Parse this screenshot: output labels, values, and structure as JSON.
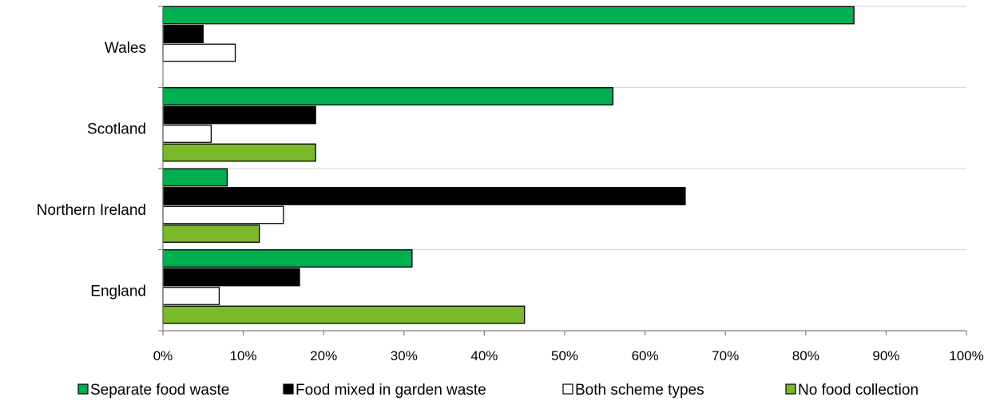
{
  "chart_data": {
    "type": "bar",
    "orientation": "horizontal",
    "title": "",
    "xlabel": "",
    "ylabel": "",
    "categories": [
      "Wales",
      "Scotland",
      "Northern Ireland",
      "England"
    ],
    "series": [
      {
        "name": "Separate food waste",
        "color": "#00b050",
        "values": [
          86,
          56,
          8,
          31
        ]
      },
      {
        "name": "Food mixed in garden waste",
        "color": "#000000",
        "values": [
          5,
          19,
          65,
          17
        ]
      },
      {
        "name": "Both scheme types",
        "color": "#ffffff",
        "values": [
          9,
          6,
          15,
          7
        ]
      },
      {
        "name": "No food collection",
        "color": "#7ab929",
        "values": [
          0,
          19,
          12,
          45
        ]
      }
    ],
    "xlim": [
      0,
      100
    ],
    "x_ticks": [
      "0%",
      "10%",
      "20%",
      "30%",
      "40%",
      "50%",
      "60%",
      "70%",
      "80%",
      "90%",
      "100%"
    ],
    "grid": "horizontal separators between categories",
    "legend_position": "bottom"
  }
}
